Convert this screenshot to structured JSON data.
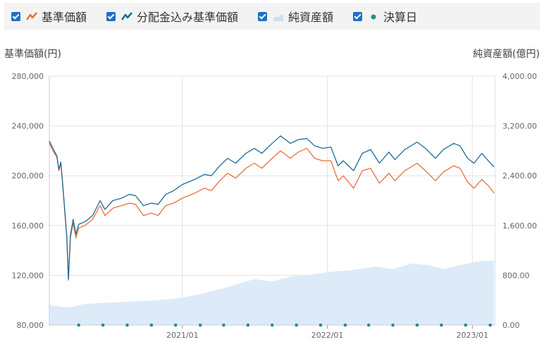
{
  "legend": {
    "items": [
      {
        "label": "基準価額",
        "icon": "line-chart-icon-orange",
        "color": "#e8703f",
        "checked": true
      },
      {
        "label": "分配金込み基準価額",
        "icon": "line-chart-icon-blue",
        "color": "#1f6c99",
        "checked": true
      },
      {
        "label": "純資産額",
        "icon": "area-chart-icon",
        "color": "#c9dff0",
        "checked": true
      },
      {
        "label": "決算日",
        "icon": "dot-icon",
        "color": "#1a9489",
        "checked": true
      }
    ]
  },
  "chart_data": {
    "type": "line",
    "ylabel": "基準価額(円)",
    "y2label": "純資産額(億円)",
    "ylim": [
      80000,
      280000
    ],
    "y2lim": [
      0,
      4000
    ],
    "yticks": [
      "280,000",
      "240,000",
      "200,000",
      "160,000",
      "120,000",
      "80,000"
    ],
    "y2ticks": [
      "4,000.00",
      "3,200.00",
      "2,400.00",
      "1,600.00",
      "800.00",
      "0.00"
    ],
    "xlabels": [
      {
        "date": "2021-01-01",
        "label": "2021/01"
      },
      {
        "date": "2022-01-01",
        "label": "2022/01"
      },
      {
        "date": "2023-01-01",
        "label": "2023/01"
      }
    ],
    "xlim": [
      "2020-02-01",
      "2023-02-28"
    ],
    "grid": true,
    "series": [
      {
        "name": "基準価額",
        "color": "#e8703f",
        "points": [
          [
            "2020-02-01",
            226000
          ],
          [
            "2020-02-10",
            220000
          ],
          [
            "2020-02-20",
            215000
          ],
          [
            "2020-02-25",
            204000
          ],
          [
            "2020-03-01",
            210000
          ],
          [
            "2020-03-05",
            195000
          ],
          [
            "2020-03-10",
            175000
          ],
          [
            "2020-03-16",
            150000
          ],
          [
            "2020-03-20",
            116000
          ],
          [
            "2020-03-25",
            150000
          ],
          [
            "2020-04-01",
            162000
          ],
          [
            "2020-04-08",
            150000
          ],
          [
            "2020-04-15",
            158000
          ],
          [
            "2020-05-01",
            160000
          ],
          [
            "2020-05-20",
            165000
          ],
          [
            "2020-06-08",
            176000
          ],
          [
            "2020-06-20",
            168000
          ],
          [
            "2020-07-10",
            174000
          ],
          [
            "2020-08-01",
            176000
          ],
          [
            "2020-08-20",
            178000
          ],
          [
            "2020-09-05",
            177000
          ],
          [
            "2020-09-25",
            168000
          ],
          [
            "2020-10-15",
            170000
          ],
          [
            "2020-11-01",
            168000
          ],
          [
            "2020-11-20",
            176000
          ],
          [
            "2020-12-10",
            178000
          ],
          [
            "2021-01-01",
            182000
          ],
          [
            "2021-02-01",
            186000
          ],
          [
            "2021-02-25",
            190000
          ],
          [
            "2021-03-15",
            188000
          ],
          [
            "2021-04-05",
            196000
          ],
          [
            "2021-04-25",
            202000
          ],
          [
            "2021-05-15",
            198000
          ],
          [
            "2021-06-10",
            206000
          ],
          [
            "2021-07-01",
            210000
          ],
          [
            "2021-07-20",
            206000
          ],
          [
            "2021-08-15",
            214000
          ],
          [
            "2021-09-05",
            220000
          ],
          [
            "2021-09-30",
            214000
          ],
          [
            "2021-10-20",
            219000
          ],
          [
            "2021-11-10",
            222000
          ],
          [
            "2021-11-30",
            214000
          ],
          [
            "2021-12-20",
            212000
          ],
          [
            "2022-01-10",
            212000
          ],
          [
            "2022-01-28",
            196000
          ],
          [
            "2022-02-10",
            200000
          ],
          [
            "2022-03-08",
            190000
          ],
          [
            "2022-03-30",
            204000
          ],
          [
            "2022-04-20",
            206000
          ],
          [
            "2022-05-12",
            194000
          ],
          [
            "2022-06-05",
            202000
          ],
          [
            "2022-06-20",
            196000
          ],
          [
            "2022-07-15",
            204000
          ],
          [
            "2022-08-15",
            210000
          ],
          [
            "2022-09-05",
            204000
          ],
          [
            "2022-09-30",
            196000
          ],
          [
            "2022-10-20",
            203000
          ],
          [
            "2022-11-15",
            208000
          ],
          [
            "2022-12-01",
            206000
          ],
          [
            "2022-12-20",
            195000
          ],
          [
            "2023-01-05",
            190000
          ],
          [
            "2023-01-25",
            197000
          ],
          [
            "2023-02-10",
            192000
          ],
          [
            "2023-02-25",
            186000
          ]
        ]
      },
      {
        "name": "分配金込み基準価額",
        "color": "#1f6c99",
        "points": [
          [
            "2020-02-01",
            228000
          ],
          [
            "2020-02-10",
            222000
          ],
          [
            "2020-02-20",
            216000
          ],
          [
            "2020-02-25",
            205000
          ],
          [
            "2020-03-01",
            211000
          ],
          [
            "2020-03-05",
            196000
          ],
          [
            "2020-03-10",
            176000
          ],
          [
            "2020-03-16",
            151000
          ],
          [
            "2020-03-20",
            117000
          ],
          [
            "2020-03-25",
            152000
          ],
          [
            "2020-04-01",
            165000
          ],
          [
            "2020-04-08",
            153000
          ],
          [
            "2020-04-15",
            161000
          ],
          [
            "2020-05-01",
            163000
          ],
          [
            "2020-05-20",
            168000
          ],
          [
            "2020-06-08",
            180000
          ],
          [
            "2020-06-20",
            173000
          ],
          [
            "2020-07-10",
            180000
          ],
          [
            "2020-08-01",
            182000
          ],
          [
            "2020-08-20",
            185000
          ],
          [
            "2020-09-05",
            184000
          ],
          [
            "2020-09-25",
            176000
          ],
          [
            "2020-10-15",
            178000
          ],
          [
            "2020-11-01",
            177000
          ],
          [
            "2020-11-20",
            185000
          ],
          [
            "2020-12-10",
            188000
          ],
          [
            "2021-01-01",
            193000
          ],
          [
            "2021-02-01",
            197000
          ],
          [
            "2021-02-25",
            201000
          ],
          [
            "2021-03-15",
            200000
          ],
          [
            "2021-04-05",
            208000
          ],
          [
            "2021-04-25",
            214000
          ],
          [
            "2021-05-15",
            210000
          ],
          [
            "2021-06-10",
            218000
          ],
          [
            "2021-07-01",
            222000
          ],
          [
            "2021-07-20",
            218000
          ],
          [
            "2021-08-15",
            226000
          ],
          [
            "2021-09-05",
            232000
          ],
          [
            "2021-09-30",
            226000
          ],
          [
            "2021-10-20",
            229000
          ],
          [
            "2021-11-10",
            230000
          ],
          [
            "2021-11-30",
            224000
          ],
          [
            "2021-12-20",
            222000
          ],
          [
            "2022-01-10",
            223000
          ],
          [
            "2022-01-28",
            208000
          ],
          [
            "2022-02-10",
            212000
          ],
          [
            "2022-03-08",
            204000
          ],
          [
            "2022-03-30",
            218000
          ],
          [
            "2022-04-20",
            221000
          ],
          [
            "2022-05-12",
            210000
          ],
          [
            "2022-06-05",
            219000
          ],
          [
            "2022-06-20",
            213000
          ],
          [
            "2022-07-15",
            221000
          ],
          [
            "2022-08-15",
            227000
          ],
          [
            "2022-09-05",
            222000
          ],
          [
            "2022-09-30",
            214000
          ],
          [
            "2022-10-20",
            221000
          ],
          [
            "2022-11-15",
            226000
          ],
          [
            "2022-12-01",
            224000
          ],
          [
            "2022-12-20",
            214000
          ],
          [
            "2023-01-05",
            210000
          ],
          [
            "2023-01-25",
            218000
          ],
          [
            "2023-02-10",
            212000
          ],
          [
            "2023-02-25",
            207000
          ]
        ]
      }
    ],
    "area_series": {
      "name": "純資産額",
      "color": "#dcebf7",
      "points": [
        [
          "2020-02-01",
          320
        ],
        [
          "2020-03-20",
          280
        ],
        [
          "2020-05-01",
          340
        ],
        [
          "2020-07-01",
          360
        ],
        [
          "2020-09-01",
          380
        ],
        [
          "2020-11-01",
          400
        ],
        [
          "2021-01-01",
          440
        ],
        [
          "2021-03-01",
          520
        ],
        [
          "2021-05-01",
          620
        ],
        [
          "2021-07-01",
          740
        ],
        [
          "2021-08-15",
          700
        ],
        [
          "2021-10-01",
          780
        ],
        [
          "2021-12-01",
          820
        ],
        [
          "2022-01-15",
          860
        ],
        [
          "2022-03-01",
          880
        ],
        [
          "2022-05-01",
          940
        ],
        [
          "2022-06-15",
          900
        ],
        [
          "2022-08-01",
          990
        ],
        [
          "2022-09-15",
          960
        ],
        [
          "2022-10-20",
          900
        ],
        [
          "2022-12-01",
          960
        ],
        [
          "2023-01-10",
          1020
        ],
        [
          "2023-02-25",
          1040
        ]
      ]
    },
    "settlement_dates": [
      "2020-04-15",
      "2020-06-15",
      "2020-08-15",
      "2020-10-15",
      "2020-12-15",
      "2021-02-15",
      "2021-04-15",
      "2021-06-15",
      "2021-08-15",
      "2021-10-15",
      "2021-12-15",
      "2022-02-15",
      "2022-04-15",
      "2022-06-15",
      "2022-08-15",
      "2022-10-15",
      "2022-12-15",
      "2023-02-15"
    ]
  }
}
